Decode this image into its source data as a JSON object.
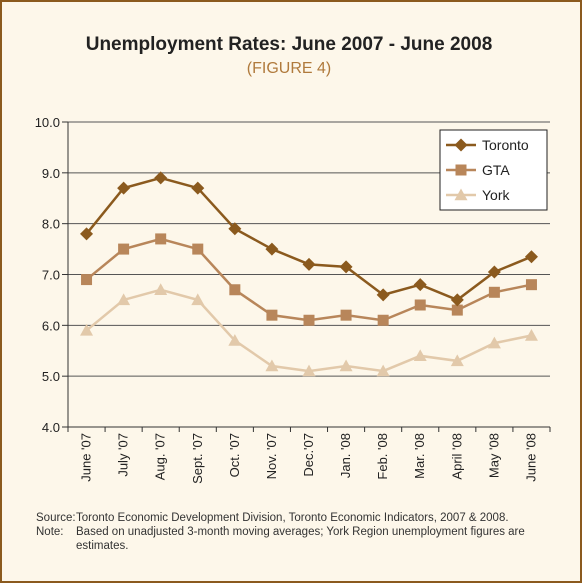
{
  "header": {
    "title": "Unemployment Rates: June 2007 - June 2008",
    "subtitle": "(FIGURE 4)"
  },
  "chart_data": {
    "type": "line",
    "title": "Unemployment Rates: June 2007 - June 2008",
    "subtitle": "(FIGURE 4)",
    "categories": [
      "June '07",
      "July '07",
      "Aug. '07",
      "Sept. '07",
      "Oct. '07",
      "Nov. '07",
      "Dec.'07",
      "Jan. '08",
      "Feb. '08",
      "Mar. '08",
      "April '08",
      "May '08",
      "June '08"
    ],
    "ylim": [
      4.0,
      10.0
    ],
    "yticks": [
      "4.0",
      "5.0",
      "6.0",
      "7.0",
      "8.0",
      "9.0",
      "10.0"
    ],
    "grid": "horizontal",
    "legend_position": "top-right",
    "series": [
      {
        "name": "Toronto",
        "marker": "diamond",
        "color": "#8b5a1e",
        "values": [
          7.8,
          8.7,
          8.9,
          8.7,
          7.9,
          7.5,
          7.2,
          7.15,
          6.6,
          6.8,
          6.5,
          7.05,
          7.35
        ]
      },
      {
        "name": "GTA",
        "marker": "square",
        "color": "#b8865a",
        "values": [
          6.9,
          7.5,
          7.7,
          7.5,
          6.7,
          6.2,
          6.1,
          6.2,
          6.1,
          6.4,
          6.3,
          6.65,
          6.8
        ]
      },
      {
        "name": "York",
        "marker": "triangle",
        "color": "#e2c9aa",
        "values": [
          5.9,
          6.5,
          6.7,
          6.5,
          5.7,
          5.2,
          5.1,
          5.2,
          5.1,
          5.4,
          5.3,
          5.65,
          5.8
        ]
      }
    ]
  },
  "notes": {
    "source_label": "Source:",
    "source_text": "Toronto Economic Development Division, Toronto Economic Indicators, 2007 & 2008.",
    "note_label": "Note:",
    "note_text": "Based on unadjusted 3-month moving averages; York Region unemployment figures are estimates."
  }
}
